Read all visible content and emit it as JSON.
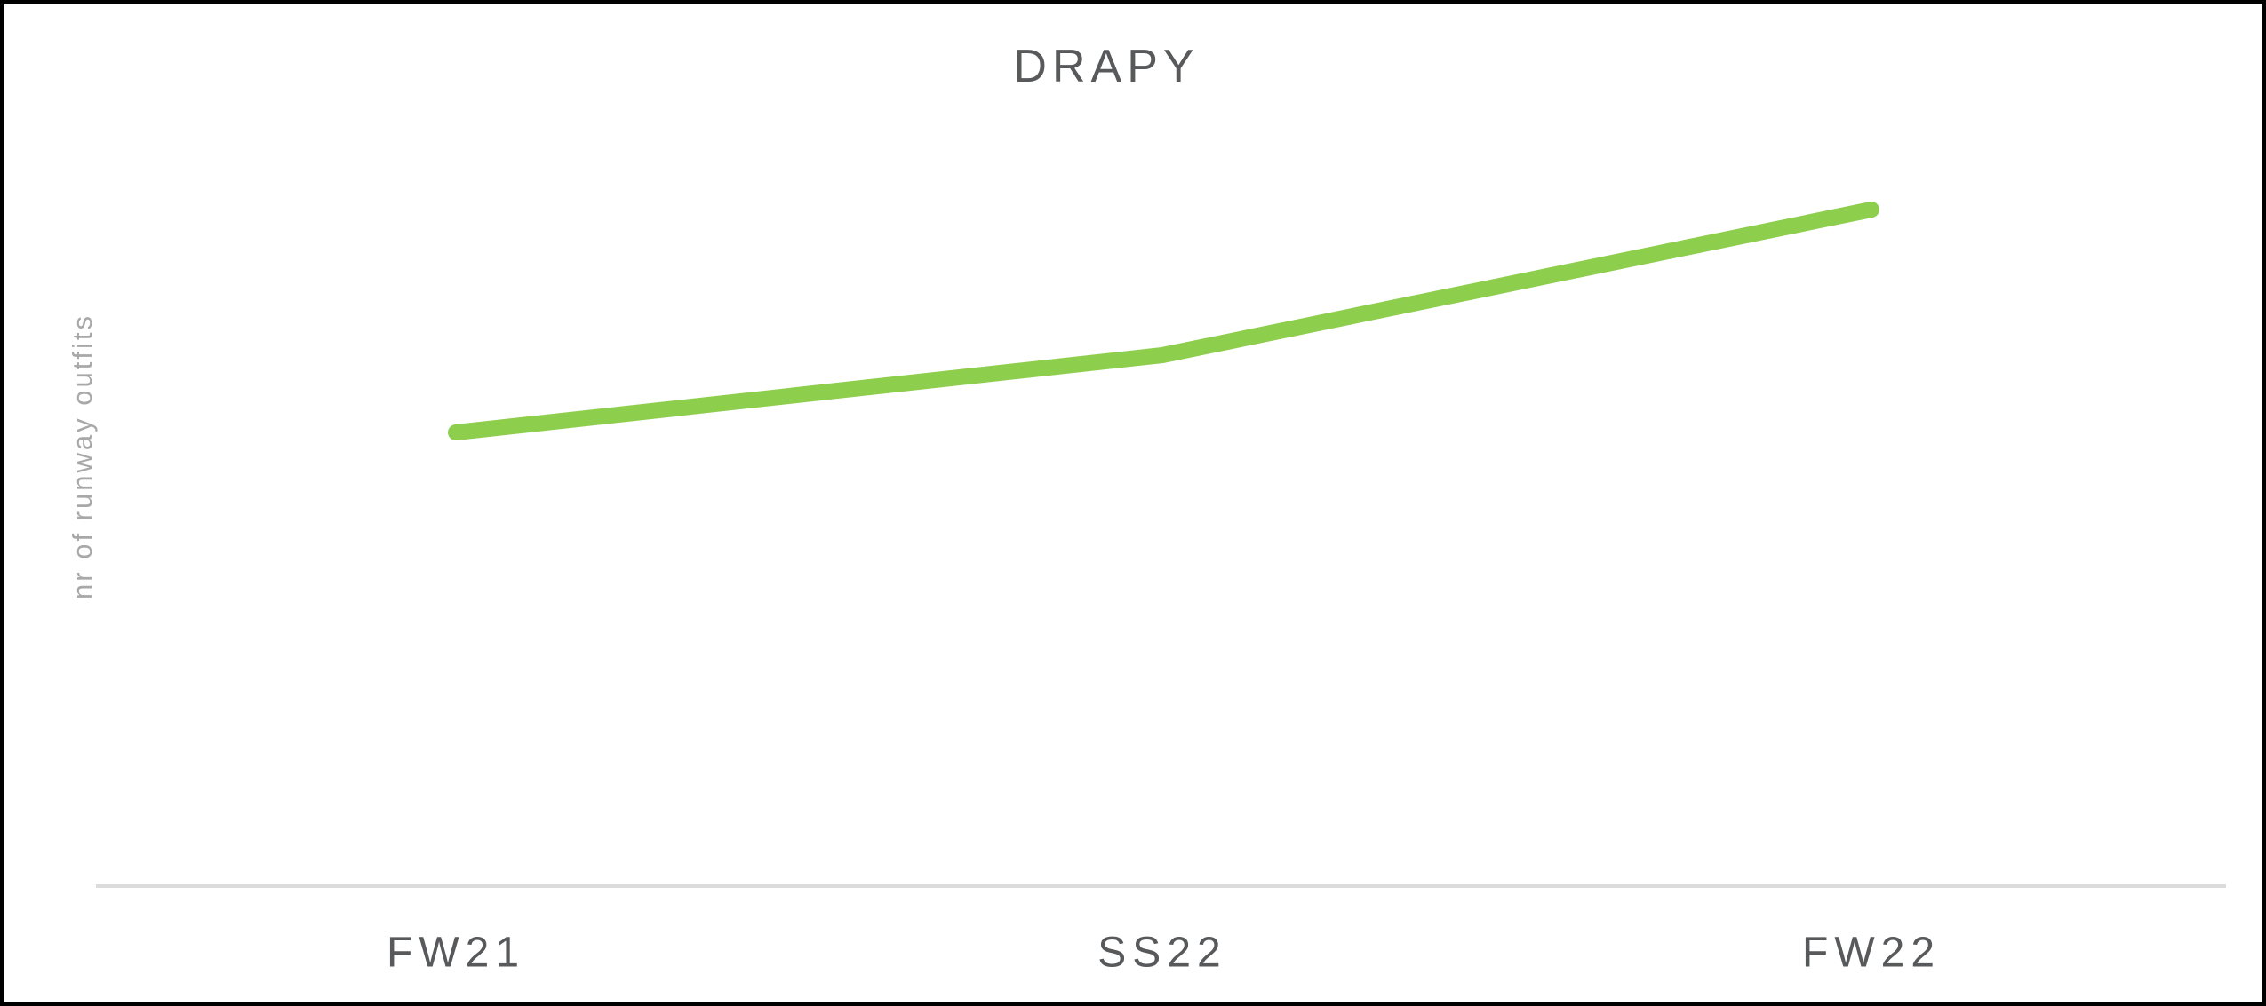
{
  "chart_data": {
    "type": "line",
    "title": "DRAPY",
    "ylabel": "nr of runway outfits",
    "xlabel": "",
    "categories": [
      "FW21",
      "SS22",
      "FW22"
    ],
    "series": [
      {
        "name": "DRAPY",
        "values": [
          51.5,
          60.2,
          76.7
        ],
        "color": "#8dce4c"
      }
    ],
    "ylim": [
      0,
      100
    ],
    "y_tick_labels_visible": false,
    "gridlines": false,
    "legend_visible": false
  },
  "colors": {
    "line": "#8dce4c",
    "title_text": "#58595b",
    "x_label_text": "#58595b",
    "y_label_text": "#a8a8a8",
    "axis_line": "#dcdcdc",
    "frame_border": "#000000",
    "background": "#ffffff"
  }
}
